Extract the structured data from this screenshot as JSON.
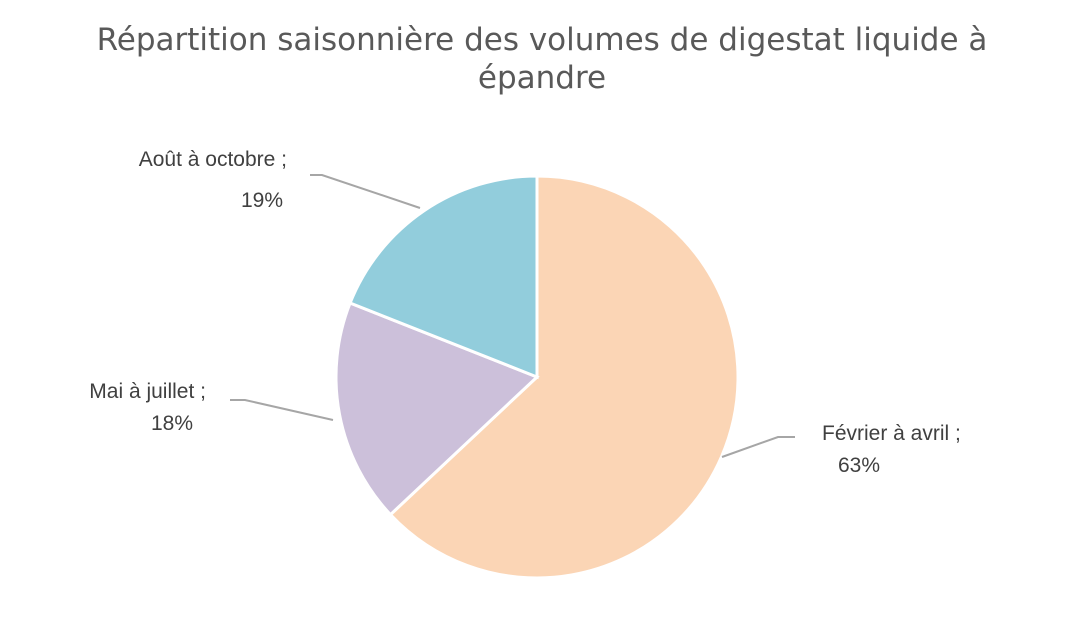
{
  "chart_data": {
    "type": "pie",
    "title_lines": [
      "Répartition saisonnière des volumes de digestat liquide à",
      "épandre"
    ],
    "slices": [
      {
        "name": "Février à avril",
        "value": 63,
        "label": "Février à avril ;",
        "value_label": "63%",
        "color": "#fbd5b5"
      },
      {
        "name": "Mai à juillet",
        "value": 18,
        "label": "Mai à juillet ;",
        "value_label": "18%",
        "color": "#ccc0da"
      },
      {
        "name": "Août à octobre",
        "value": 19,
        "label": "Août à octobre ;",
        "value_label": "19%",
        "color": "#92cddc"
      }
    ],
    "start_angle_deg": 0,
    "direction": "clockwise",
    "legend": "none"
  }
}
